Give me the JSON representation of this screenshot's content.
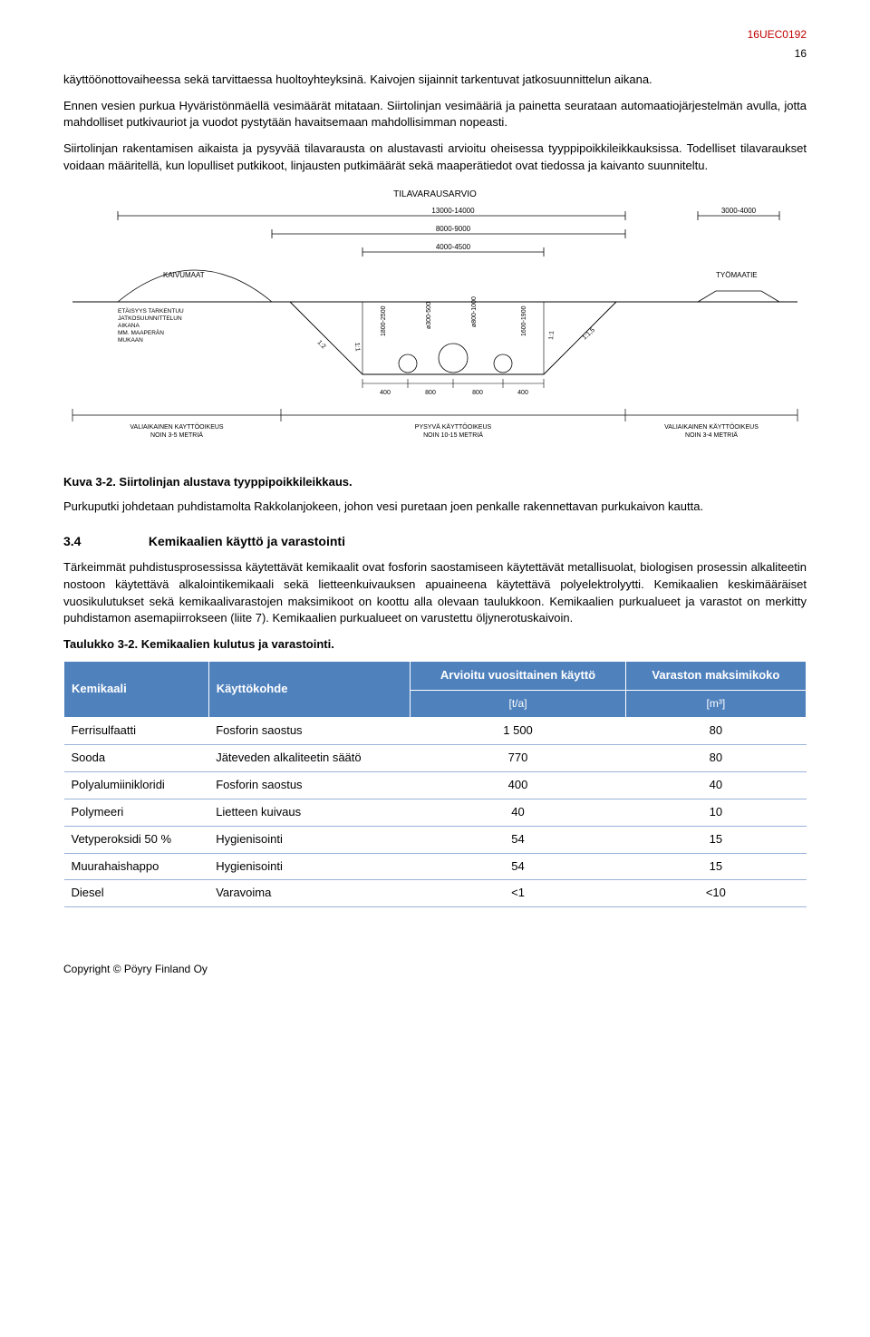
{
  "header": {
    "doc_id": "16UEC0192",
    "page_number": "16"
  },
  "paragraphs": {
    "p1": "käyttöönottovaiheessa sekä tarvittaessa huoltoyhteyksinä. Kaivojen sijainnit tarkentuvat jatkosuunnittelun aikana.",
    "p2": "Ennen vesien purkua Hyväristönmäellä vesimäärät mitataan. Siirtolinjan vesimääriä ja painetta seurataan automaatiojärjestelmän avulla, jotta mahdolliset putkivauriot ja vuodot pystytään havaitsemaan mahdollisimman nopeasti.",
    "p3": "Siirtolinjan rakentamisen aikaista ja pysyvää tilavarausta on alustavasti arvioitu oheisessa tyyppipoikkileikkauksissa. Todelliset tilavaraukset voidaan määritellä, kun lopulliset putkikoot, linjausten putkimäärät sekä maaperätiedot ovat tiedossa ja kaivanto suunniteltu.",
    "p4": "Purkuputki johdetaan puhdistamolta Rakkolanjokeen, johon vesi puretaan joen penkalle rakennettavan purkukaivon kautta.",
    "p5": "Tärkeimmät puhdistusprosessissa käytettävät kemikaalit ovat fosforin saostamiseen käytettävät metallisuolat, biologisen prosessin alkaliteetin nostoon käytettävä alkalointikemikaali sekä lietteenkuivauksen apuaineena käytettävä polyelektrolyytti. Kemikaalien keskimääräiset vuosikulutukset sekä kemikaalivarastojen maksimikoot on koottu alla olevaan taulukkoon. Kemikaalien purkualueet ja varastot on merkitty puhdistamon asemapiirrokseen (liite 7). Kemikaalien purkualueet on varustettu öljynerotuskaivoin."
  },
  "figure": {
    "caption": "Kuva 3-2. Siirtolinjan alustava tyyppipoikkileikkaus.",
    "title": "TILAVARAUSARVIO",
    "labels": {
      "kaivumaat": "KAIVUMAAT",
      "tyomaatie": "TYÖMAATIE",
      "etaisyys": "ETÄISYYS TARKENTUU JATKOSUUNNITTELUN AIKANA MM. MAAPERÄN MUKAAN",
      "valiaikainen_left": "VALIAIKAINEN KAYTTÖOIKEUS NOIN 3-5 METRIÄ",
      "pysyvä": "PYSYVÄ KÄYTTÖOIKEUS NOIN 10-15 METRIÄ",
      "valiaikainen_right": "VALIAIKAINEN KÄYTTÖOIKEUS NOIN 3-4 METRIÄ"
    },
    "dimensions": {
      "d1": "13000-14000",
      "d2": "8000-9000",
      "d3": "4000-4500",
      "d4": "3000-4000",
      "pipe1": "ø300-500",
      "pipe2": "ø800-1000",
      "depth1": "1800-2500",
      "depth2": "1600-1900",
      "spacing": "400",
      "spacing2": "800",
      "slope1": "1:2",
      "slope2": "1:1",
      "slope3": "1:1,5"
    },
    "colors": {
      "line": "#000000",
      "text": "#000000",
      "bg": "#ffffff"
    }
  },
  "section": {
    "number": "3.4",
    "title": "Kemikaalien käyttö ja varastointi"
  },
  "table": {
    "caption": "Taulukko 3-2. Kemikaalien kulutus ja varastointi.",
    "header_bg": "#4f81bd",
    "header_fg": "#ffffff",
    "row_border": "#99b3d9",
    "columns": {
      "c1": "Kemikaali",
      "c2": "Käyttökohde",
      "c3": "Arvioitu vuosittainen käyttö",
      "c4": "Varaston maksimikoko",
      "u3": "[t/a]",
      "u4": "[m³]"
    },
    "rows": [
      {
        "c1": "Ferrisulfaatti",
        "c2": "Fosforin saostus",
        "c3": "1 500",
        "c4": "80"
      },
      {
        "c1": "Sooda",
        "c2": "Jäteveden alkaliteetin säätö",
        "c3": "770",
        "c4": "80"
      },
      {
        "c1": "Polyalumiinikloridi",
        "c2": "Fosforin saostus",
        "c3": "400",
        "c4": "40"
      },
      {
        "c1": "Polymeeri",
        "c2": "Lietteen kuivaus",
        "c3": "40",
        "c4": "10"
      },
      {
        "c1": "Vetyperoksidi 50 %",
        "c2": "Hygienisointi",
        "c3": "54",
        "c4": "15"
      },
      {
        "c1": "Muurahaishappo",
        "c2": "Hygienisointi",
        "c3": "54",
        "c4": "15"
      },
      {
        "c1": "Diesel",
        "c2": "Varavoima",
        "c3": "<1",
        "c4": "<10"
      }
    ]
  },
  "footer": {
    "copyright": "Copyright © Pöyry Finland Oy"
  }
}
